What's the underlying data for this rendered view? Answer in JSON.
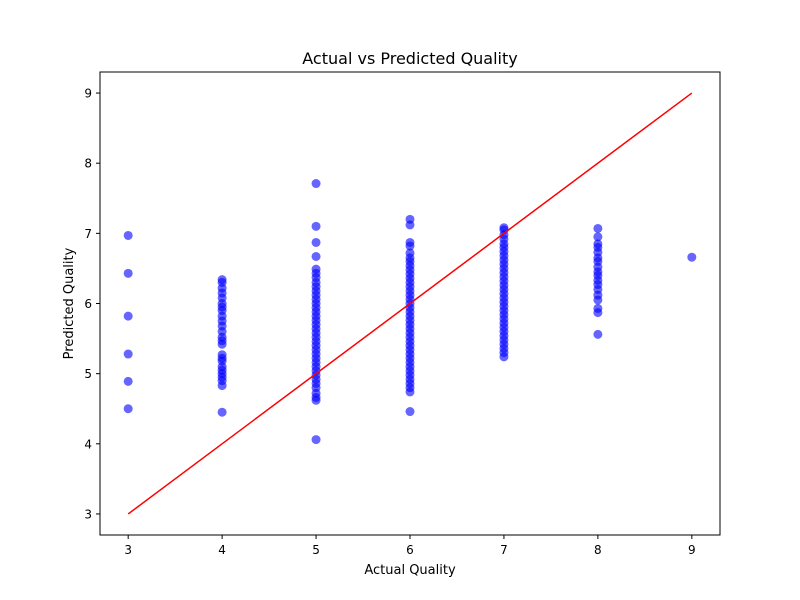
{
  "chart_data": {
    "type": "scatter",
    "title": "Actual vs Predicted Quality",
    "xlabel": "Actual Quality",
    "ylabel": "Predicted Quality",
    "xlim": [
      2.7,
      9.3
    ],
    "ylim": [
      2.7,
      9.3
    ],
    "xticks": [
      3,
      4,
      5,
      6,
      7,
      8,
      9
    ],
    "yticks": [
      3,
      4,
      5,
      6,
      7,
      8,
      9
    ],
    "grid": false,
    "colors": {
      "points": "#0000ff",
      "reference_line": "#ff0000"
    },
    "reference_line": {
      "x": [
        3,
        9
      ],
      "y": [
        3,
        9
      ]
    },
    "series": [
      {
        "points": [
          [
            3,
            6.97
          ],
          [
            3,
            6.43
          ],
          [
            3,
            5.82
          ],
          [
            3,
            5.28
          ],
          [
            3,
            4.89
          ],
          [
            3,
            4.5
          ],
          [
            4,
            6.34
          ],
          [
            4,
            6.3
          ],
          [
            4,
            6.22
          ],
          [
            4,
            6.15
          ],
          [
            4,
            6.08
          ],
          [
            4,
            6.0
          ],
          [
            4,
            5.95
          ],
          [
            4,
            5.9
          ],
          [
            4,
            5.82
          ],
          [
            4,
            5.75
          ],
          [
            4,
            5.68
          ],
          [
            4,
            5.6
          ],
          [
            4,
            5.52
          ],
          [
            4,
            5.47
          ],
          [
            4,
            5.42
          ],
          [
            4,
            5.27
          ],
          [
            4,
            5.22
          ],
          [
            4,
            5.18
          ],
          [
            4,
            5.1
          ],
          [
            4,
            5.05
          ],
          [
            4,
            5.0
          ],
          [
            4,
            4.95
          ],
          [
            4,
            4.9
          ],
          [
            4,
            4.83
          ],
          [
            4,
            4.45
          ],
          [
            5,
            7.71
          ],
          [
            5,
            7.1
          ],
          [
            5,
            6.87
          ],
          [
            5,
            6.67
          ],
          [
            5,
            6.49
          ],
          [
            5,
            6.43
          ],
          [
            5,
            6.37
          ],
          [
            5,
            6.3
          ],
          [
            5,
            6.24
          ],
          [
            5,
            6.18
          ],
          [
            5,
            6.12
          ],
          [
            5,
            6.06
          ],
          [
            5,
            6.0
          ],
          [
            5,
            5.94
          ],
          [
            5,
            5.88
          ],
          [
            5,
            5.82
          ],
          [
            5,
            5.76
          ],
          [
            5,
            5.7
          ],
          [
            5,
            5.64
          ],
          [
            5,
            5.58
          ],
          [
            5,
            5.52
          ],
          [
            5,
            5.46
          ],
          [
            5,
            5.4
          ],
          [
            5,
            5.34
          ],
          [
            5,
            5.28
          ],
          [
            5,
            5.22
          ],
          [
            5,
            5.16
          ],
          [
            5,
            5.1
          ],
          [
            5,
            5.04
          ],
          [
            5,
            4.98
          ],
          [
            5,
            4.92
          ],
          [
            5,
            4.86
          ],
          [
            5,
            4.8
          ],
          [
            5,
            4.72
          ],
          [
            5,
            4.66
          ],
          [
            5,
            4.62
          ],
          [
            5,
            4.06
          ],
          [
            6,
            7.2
          ],
          [
            6,
            7.12
          ],
          [
            6,
            6.87
          ],
          [
            6,
            6.82
          ],
          [
            6,
            6.72
          ],
          [
            6,
            6.65
          ],
          [
            6,
            6.6
          ],
          [
            6,
            6.54
          ],
          [
            6,
            6.48
          ],
          [
            6,
            6.42
          ],
          [
            6,
            6.36
          ],
          [
            6,
            6.3
          ],
          [
            6,
            6.24
          ],
          [
            6,
            6.18
          ],
          [
            6,
            6.12
          ],
          [
            6,
            6.06
          ],
          [
            6,
            6.0
          ],
          [
            6,
            5.94
          ],
          [
            6,
            5.88
          ],
          [
            6,
            5.82
          ],
          [
            6,
            5.76
          ],
          [
            6,
            5.7
          ],
          [
            6,
            5.64
          ],
          [
            6,
            5.58
          ],
          [
            6,
            5.52
          ],
          [
            6,
            5.46
          ],
          [
            6,
            5.4
          ],
          [
            6,
            5.34
          ],
          [
            6,
            5.28
          ],
          [
            6,
            5.22
          ],
          [
            6,
            5.16
          ],
          [
            6,
            5.1
          ],
          [
            6,
            5.04
          ],
          [
            6,
            4.98
          ],
          [
            6,
            4.92
          ],
          [
            6,
            4.86
          ],
          [
            6,
            4.8
          ],
          [
            6,
            4.74
          ],
          [
            6,
            4.46
          ],
          [
            7,
            7.08
          ],
          [
            7,
            7.05
          ],
          [
            7,
            6.98
          ],
          [
            7,
            6.92
          ],
          [
            7,
            6.85
          ],
          [
            7,
            6.8
          ],
          [
            7,
            6.74
          ],
          [
            7,
            6.68
          ],
          [
            7,
            6.62
          ],
          [
            7,
            6.56
          ],
          [
            7,
            6.5
          ],
          [
            7,
            6.44
          ],
          [
            7,
            6.38
          ],
          [
            7,
            6.32
          ],
          [
            7,
            6.26
          ],
          [
            7,
            6.2
          ],
          [
            7,
            6.14
          ],
          [
            7,
            6.08
          ],
          [
            7,
            6.02
          ],
          [
            7,
            5.96
          ],
          [
            7,
            5.9
          ],
          [
            7,
            5.84
          ],
          [
            7,
            5.78
          ],
          [
            7,
            5.72
          ],
          [
            7,
            5.66
          ],
          [
            7,
            5.6
          ],
          [
            7,
            5.54
          ],
          [
            7,
            5.48
          ],
          [
            7,
            5.42
          ],
          [
            7,
            5.36
          ],
          [
            7,
            5.3
          ],
          [
            7,
            5.24
          ],
          [
            8,
            7.07
          ],
          [
            8,
            6.95
          ],
          [
            8,
            6.85
          ],
          [
            8,
            6.8
          ],
          [
            8,
            6.73
          ],
          [
            8,
            6.65
          ],
          [
            8,
            6.6
          ],
          [
            8,
            6.52
          ],
          [
            8,
            6.45
          ],
          [
            8,
            6.4
          ],
          [
            8,
            6.33
          ],
          [
            8,
            6.27
          ],
          [
            8,
            6.2
          ],
          [
            8,
            6.12
          ],
          [
            8,
            6.05
          ],
          [
            8,
            5.93
          ],
          [
            8,
            5.87
          ],
          [
            8,
            5.56
          ],
          [
            9,
            6.66
          ]
        ]
      }
    ]
  }
}
